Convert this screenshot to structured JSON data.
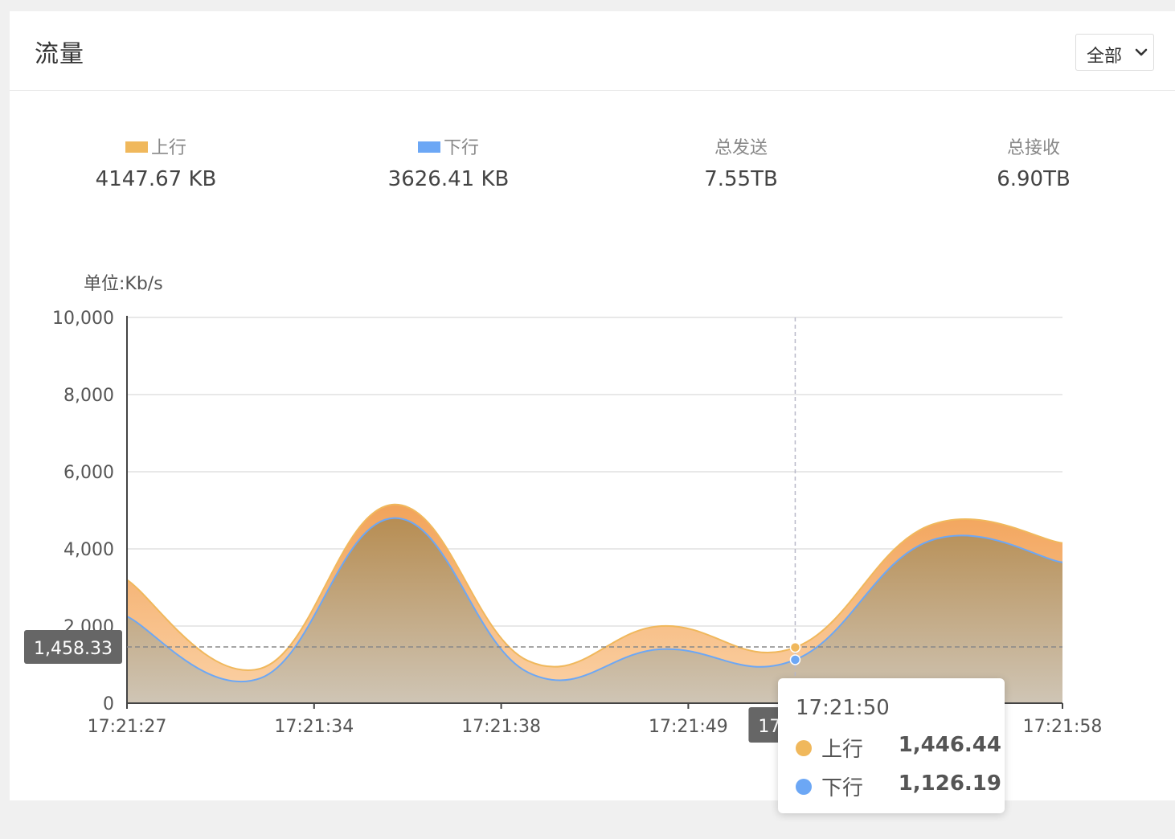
{
  "card": {
    "title": "流量",
    "range_select": {
      "value": "全部",
      "icon": "chevron-down-icon"
    }
  },
  "stats": [
    {
      "label": "上行",
      "value": "4147.67 KB",
      "swatch": "#f0b85c"
    },
    {
      "label": "下行",
      "value": "3626.41 KB",
      "swatch": "#6ca7f5"
    },
    {
      "label": "总发送",
      "value": "7.55TB"
    },
    {
      "label": "总接收",
      "value": "6.90TB"
    }
  ],
  "chart_data": {
    "type": "area",
    "unit_label": "单位:Kb/s",
    "categories": [
      "17:21:27",
      "17:21:34",
      "17:21:38",
      "17:21:49",
      "17:21:50",
      "17:21:50",
      "17:21:58",
      "17:21:58"
    ],
    "x_tick_labels": [
      "17:21:27",
      "17:21:34",
      "17:21:38",
      "17:21:49",
      "17:21:50",
      "17:21:58"
    ],
    "y_ticks": [
      "0",
      "2,000",
      "4,000",
      "6,000",
      "8,000",
      "10,000"
    ],
    "ylim": [
      0,
      10000
    ],
    "series": [
      {
        "name": "上行",
        "color": "#f0b85c",
        "values": [
          3200,
          900,
          5150,
          1100,
          2000,
          1446.44,
          4600,
          4150
        ]
      },
      {
        "name": "下行",
        "color": "#6ca7f5",
        "values": [
          2250,
          650,
          4800,
          800,
          1400,
          1126.19,
          4200,
          3650
        ]
      }
    ],
    "grid": true,
    "crosshair": {
      "category_index": 5,
      "y_value": 1458.33,
      "y_label": "1,458.33",
      "x_label_partial": "17"
    },
    "tooltip": {
      "time": "17:21:50",
      "items": [
        {
          "name": "上行",
          "value": "1,446.44",
          "color": "#f0b85c"
        },
        {
          "name": "下行",
          "value": "1,126.19",
          "color": "#6ca7f5"
        }
      ]
    }
  }
}
